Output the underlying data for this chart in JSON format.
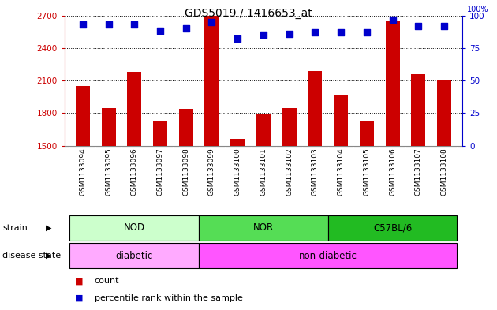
{
  "title": "GDS5019 / 1416653_at",
  "samples": [
    "GSM1133094",
    "GSM1133095",
    "GSM1133096",
    "GSM1133097",
    "GSM1133098",
    "GSM1133099",
    "GSM1133100",
    "GSM1133101",
    "GSM1133102",
    "GSM1133103",
    "GSM1133104",
    "GSM1133105",
    "GSM1133106",
    "GSM1133107",
    "GSM1133108"
  ],
  "counts": [
    2050,
    1850,
    2180,
    1720,
    1840,
    2700,
    1560,
    1790,
    1850,
    2190,
    1960,
    1720,
    2650,
    2160,
    2100
  ],
  "percentiles": [
    93,
    93,
    93,
    88,
    90,
    95,
    82,
    85,
    86,
    87,
    87,
    87,
    97,
    92,
    92
  ],
  "ylim_left": [
    1500,
    2700
  ],
  "ylim_right": [
    0,
    100
  ],
  "yticks_left": [
    1500,
    1800,
    2100,
    2400,
    2700
  ],
  "yticks_right": [
    0,
    25,
    50,
    75,
    100
  ],
  "bar_color": "#cc0000",
  "dot_color": "#0000cc",
  "strain_groups": [
    {
      "label": "NOD",
      "start": 0,
      "end": 4,
      "color": "#ccffcc"
    },
    {
      "label": "NOR",
      "start": 5,
      "end": 9,
      "color": "#55dd55"
    },
    {
      "label": "C57BL/6",
      "start": 10,
      "end": 14,
      "color": "#22bb22"
    }
  ],
  "disease_groups": [
    {
      "label": "diabetic",
      "start": 0,
      "end": 4,
      "color": "#ffaaff"
    },
    {
      "label": "non-diabetic",
      "start": 5,
      "end": 14,
      "color": "#ff55ff"
    }
  ],
  "strain_label": "strain",
  "disease_label": "disease state",
  "legend_count": "count",
  "legend_pct": "percentile rank within the sample",
  "bar_width": 0.55,
  "right_axis_color": "#0000cc",
  "left_axis_color": "#cc0000",
  "tick_bg_color": "#bbbbbb"
}
